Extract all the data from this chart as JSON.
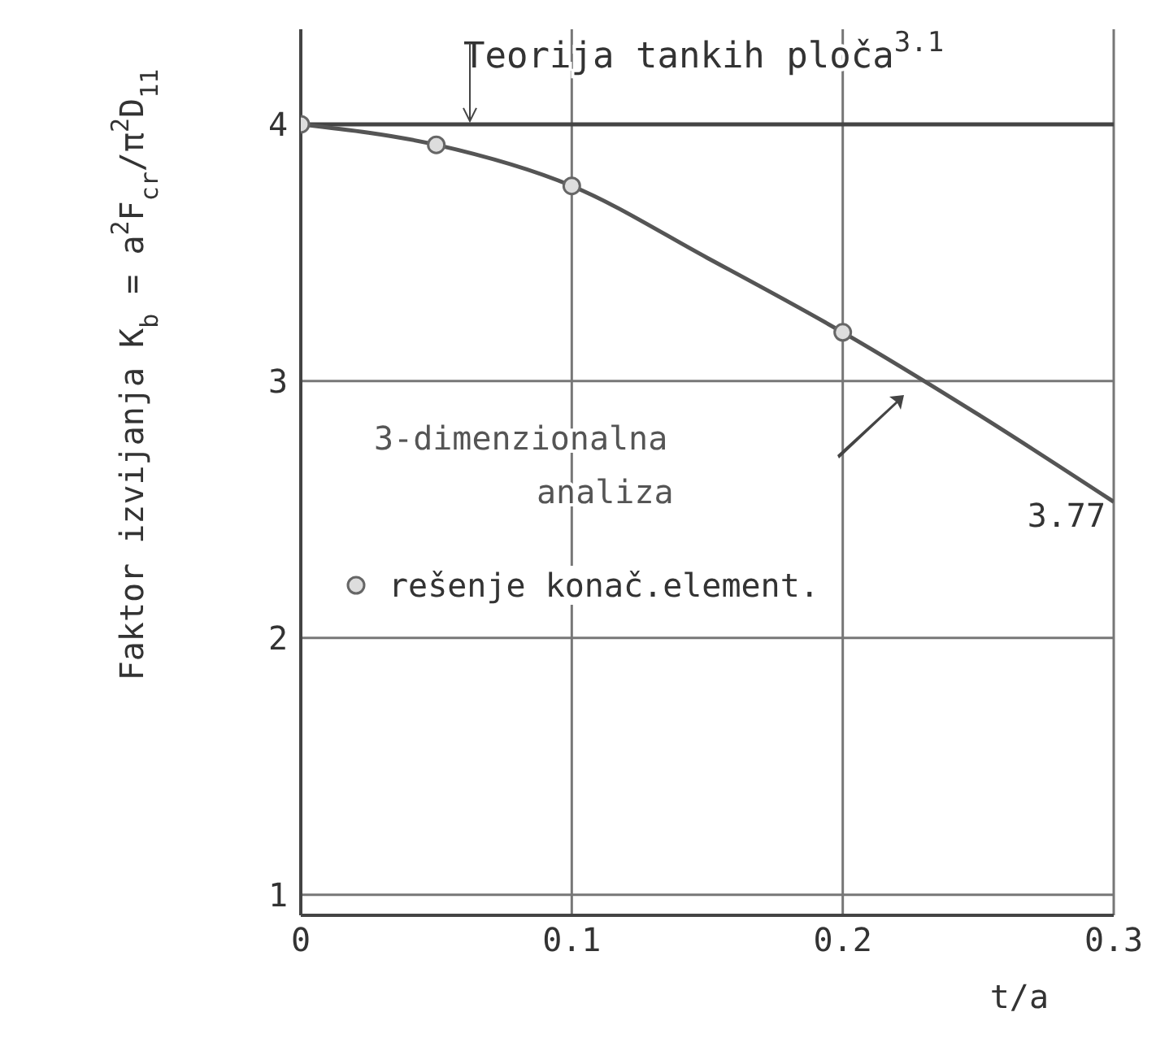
{
  "chart_data": {
    "type": "line",
    "xlabel": "t/a",
    "ylabel": "Faktor izvijanja K$_{b}$ = a$^{2}$F$_{cr}$/π$^{2}$D$_{11}$",
    "xlim": [
      0,
      0.3
    ],
    "xticks": [
      0,
      0.1,
      0.2,
      0.3
    ],
    "ylim": [
      0.92,
      4.37
    ],
    "yticks": [
      1,
      2,
      3,
      4
    ],
    "grid": true,
    "legend": "left",
    "series": [
      {
        "name": "3-dimenzionalna analiza",
        "color": "#555555",
        "marker": "none",
        "line_style": "solid",
        "x": [
          0,
          0.05,
          0.1,
          0.15,
          0.2,
          0.25,
          0.3
        ],
        "values": [
          4.0,
          3.92,
          3.76,
          3.48,
          3.19,
          2.87,
          2.53
        ]
      },
      {
        "name": "rešenje konač.element.",
        "type": "scatter",
        "color": "#666666",
        "marker": "circle",
        "x": [
          0,
          0.05,
          0.1,
          0.2
        ],
        "values": [
          4.0,
          3.92,
          3.76,
          3.19
        ]
      }
    ],
    "ref_lines": [
      {
        "axis": "y",
        "value": 4,
        "label": "Teorija tankih ploča$^{3.1}$",
        "color": "#444444"
      }
    ],
    "annotations": [
      {
        "text": "3.77",
        "x": 0.3,
        "y": 2.53
      }
    ]
  }
}
